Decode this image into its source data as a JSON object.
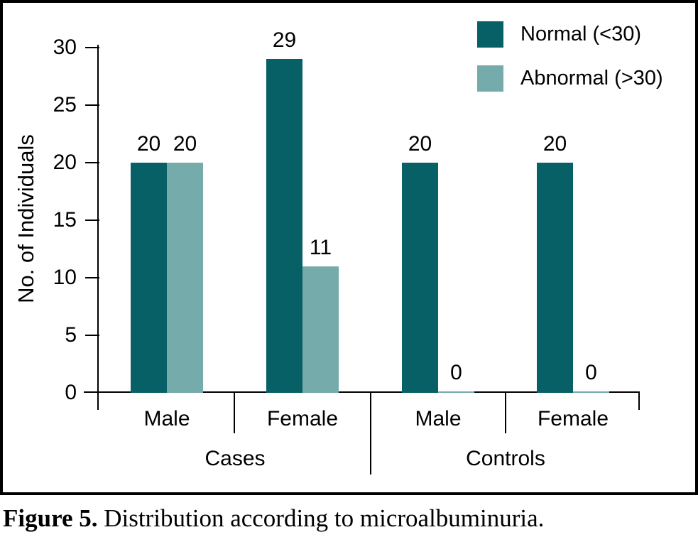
{
  "figure": {
    "caption_label": "Figure 5.",
    "caption_text": " Distribution according to microalbuminuria."
  },
  "chart_data": {
    "type": "bar",
    "title": "",
    "xlabel": "",
    "ylabel": "No. of Individuals",
    "ylim": [
      0,
      30
    ],
    "yticks": [
      0,
      5,
      10,
      15,
      20,
      25,
      30
    ],
    "grid": false,
    "legend_position": "top-right",
    "categories": [
      "Male",
      "Female",
      "Male",
      "Female"
    ],
    "group_labels": [
      "Cases",
      "Controls"
    ],
    "series": [
      {
        "name": "Normal (<30)",
        "color": "#066066",
        "values": [
          20,
          29,
          20,
          20
        ]
      },
      {
        "name": "Abnormal (>30)",
        "color": "#76abab",
        "values": [
          20,
          11,
          0,
          0
        ]
      }
    ],
    "value_labels": [
      "20",
      "20",
      "29",
      "11",
      "20",
      "0",
      "20",
      "0"
    ]
  },
  "colors": {
    "axis": "#000000",
    "frame_border": "#000000",
    "background": "#ffffff"
  }
}
